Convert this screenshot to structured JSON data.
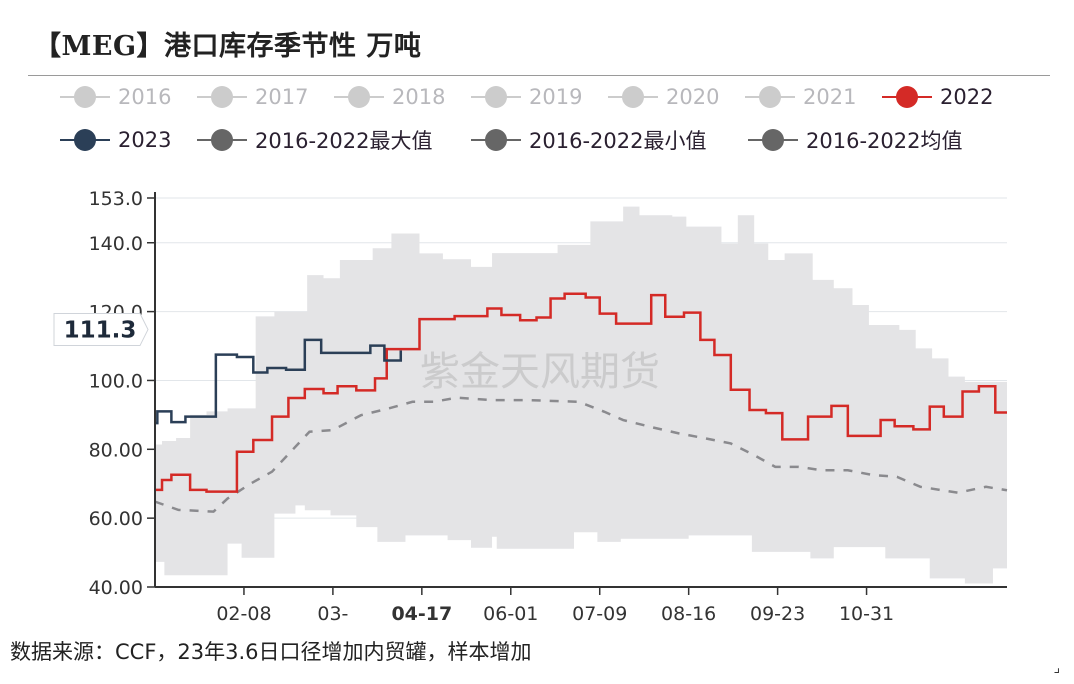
{
  "title": "【MEG】港口库存季节性 万吨",
  "footer": "数据来源：CCF，23年3.6日口径增加内贸罐，样本增加",
  "watermark": "紫金天风期货",
  "legend": [
    {
      "label": "2016",
      "color": "#cccccc",
      "inactive": true
    },
    {
      "label": "2017",
      "color": "#cccccc",
      "inactive": true
    },
    {
      "label": "2018",
      "color": "#cccccc",
      "inactive": true
    },
    {
      "label": "2019",
      "color": "#cccccc",
      "inactive": true
    },
    {
      "label": "2020",
      "color": "#cccccc",
      "inactive": true
    },
    {
      "label": "2021",
      "color": "#cccccc",
      "inactive": true
    },
    {
      "label": "2022",
      "color": "#d42a26",
      "inactive": false
    },
    {
      "label": "2023",
      "color": "#2b3f57",
      "inactive": false
    },
    {
      "label": "2016-2022最大值",
      "color": "#666666",
      "inactive": false
    },
    {
      "label": "2016-2022最小值",
      "color": "#666666",
      "inactive": false
    },
    {
      "label": "2016-2022均值",
      "color": "#666666",
      "inactive": false
    }
  ],
  "chart_data": {
    "type": "line",
    "title": "【MEG】港口库存季节性 万吨",
    "ylim": [
      40,
      153
    ],
    "y_ticks": [
      "40.00",
      "60.00",
      "80.00",
      "100.0",
      "120.0",
      "140.0",
      "153.0"
    ],
    "y_tick_values": [
      40,
      60,
      80,
      100,
      120,
      140,
      153
    ],
    "x_tick_labels": [
      "02-08",
      "03-",
      "04-17",
      "06-01",
      "07-09",
      "08-16",
      "09-23",
      "10-31"
    ],
    "axis_pointer": {
      "x_label": "04-17",
      "y_label": "111.3"
    },
    "grid": true,
    "legend_position": "top",
    "series": [
      {
        "name": "2022",
        "color": "#d42a26",
        "step": true,
        "points": [
          [
            "01-01",
            68.2
          ],
          [
            "01-04",
            71.1
          ],
          [
            "01-08",
            72.6
          ],
          [
            "01-16",
            68.2
          ],
          [
            "01-23",
            67.7
          ],
          [
            "02-05",
            79.3
          ],
          [
            "02-12",
            82.7
          ],
          [
            "02-20",
            89.5
          ],
          [
            "02-27",
            94.9
          ],
          [
            "03-06",
            97.5
          ],
          [
            "03-14",
            96.3
          ],
          [
            "03-20",
            98.3
          ],
          [
            "03-28",
            97.1
          ],
          [
            "04-05",
            100.6
          ],
          [
            "04-10",
            109.1
          ],
          [
            "04-24",
            117.8
          ],
          [
            "05-09",
            118.7
          ],
          [
            "05-23",
            120.9
          ],
          [
            "05-29",
            119.0
          ],
          [
            "06-06",
            117.5
          ],
          [
            "06-13",
            118.3
          ],
          [
            "06-19",
            123.8
          ],
          [
            "06-25",
            125.2
          ],
          [
            "07-04",
            124.1
          ],
          [
            "07-10",
            119.4
          ],
          [
            "07-17",
            116.5
          ],
          [
            "08-01",
            124.8
          ],
          [
            "08-07",
            118.5
          ],
          [
            "08-15",
            119.7
          ],
          [
            "08-22",
            111.8
          ],
          [
            "08-28",
            107.4
          ],
          [
            "09-04",
            97.3
          ],
          [
            "09-12",
            91.4
          ],
          [
            "09-19",
            90.5
          ],
          [
            "09-26",
            82.9
          ],
          [
            "10-07",
            89.5
          ],
          [
            "10-17",
            92.6
          ],
          [
            "10-24",
            83.9
          ],
          [
            "11-07",
            88.5
          ],
          [
            "11-13",
            86.7
          ],
          [
            "11-21",
            85.8
          ],
          [
            "11-28",
            92.4
          ],
          [
            "12-04",
            89.5
          ],
          [
            "12-12",
            96.8
          ],
          [
            "12-19",
            98.3
          ],
          [
            "12-26",
            90.7
          ],
          [
            "12-31",
            90.7
          ]
        ]
      },
      {
        "name": "2023",
        "color": "#2b3f57",
        "step": true,
        "points": [
          [
            "01-01",
            87.6
          ],
          [
            "01-02",
            91.0
          ],
          [
            "01-08",
            87.9
          ],
          [
            "01-14",
            89.5
          ],
          [
            "01-27",
            107.5
          ],
          [
            "02-05",
            106.8
          ],
          [
            "02-12",
            102.3
          ],
          [
            "02-18",
            103.6
          ],
          [
            "02-26",
            103.1
          ],
          [
            "03-06",
            111.8
          ],
          [
            "03-13",
            108.0
          ],
          [
            "04-03",
            110.1
          ],
          [
            "04-09",
            105.8
          ],
          [
            "04-16",
            108.7
          ]
        ]
      },
      {
        "name": "2016-2022最大值",
        "color": "#e4e4e6",
        "step": true,
        "points": [
          [
            "01-01",
            81.4
          ],
          [
            "01-04",
            82.4
          ],
          [
            "01-10",
            83.3
          ],
          [
            "01-16",
            90.0
          ],
          [
            "01-23",
            91.0
          ],
          [
            "02-01",
            91.9
          ],
          [
            "02-13",
            118.6
          ],
          [
            "02-21",
            120.0
          ],
          [
            "03-07",
            130.6
          ],
          [
            "03-14",
            129.7
          ],
          [
            "03-21",
            135.0
          ],
          [
            "04-04",
            138.4
          ],
          [
            "04-12",
            142.7
          ],
          [
            "04-24",
            136.9
          ],
          [
            "05-04",
            135.2
          ],
          [
            "05-16",
            133.0
          ],
          [
            "05-25",
            137.0
          ],
          [
            "06-22",
            139.4
          ],
          [
            "07-06",
            146.2
          ],
          [
            "07-20",
            150.5
          ],
          [
            "07-27",
            148.0
          ],
          [
            "08-10",
            147.6
          ],
          [
            "08-16",
            144.7
          ],
          [
            "08-31",
            139.8
          ],
          [
            "09-07",
            148.0
          ],
          [
            "09-14",
            139.8
          ],
          [
            "09-20",
            135.0
          ],
          [
            "09-27",
            136.9
          ],
          [
            "10-09",
            129.2
          ],
          [
            "10-18",
            126.8
          ],
          [
            "10-26",
            121.9
          ],
          [
            "11-02",
            116.1
          ],
          [
            "11-15",
            114.7
          ],
          [
            "11-22",
            109.3
          ],
          [
            "11-29",
            106.4
          ],
          [
            "12-06",
            101.1
          ],
          [
            "12-13",
            99.6
          ],
          [
            "12-31",
            99.6
          ]
        ]
      },
      {
        "name": "2016-2022最小值",
        "color": "#e4e4e6",
        "step": true,
        "points": [
          [
            "01-01",
            47.3
          ],
          [
            "01-05",
            43.4
          ],
          [
            "02-01",
            52.6
          ],
          [
            "02-07",
            48.5
          ],
          [
            "02-21",
            61.3
          ],
          [
            "03-02",
            63.7
          ],
          [
            "03-06",
            62.3
          ],
          [
            "03-17",
            60.8
          ],
          [
            "03-28",
            57.4
          ],
          [
            "04-06",
            53.1
          ],
          [
            "04-18",
            55.0
          ],
          [
            "05-06",
            53.6
          ],
          [
            "05-16",
            51.4
          ],
          [
            "05-25",
            54.6
          ],
          [
            "05-27",
            51.1
          ],
          [
            "06-29",
            55.9
          ],
          [
            "07-09",
            53.1
          ],
          [
            "07-19",
            54.0
          ],
          [
            "08-17",
            55.0
          ],
          [
            "09-13",
            50.2
          ],
          [
            "10-08",
            48.3
          ],
          [
            "10-18",
            51.6
          ],
          [
            "11-09",
            48.3
          ],
          [
            "11-28",
            42.5
          ],
          [
            "12-13",
            41.0
          ],
          [
            "12-25",
            45.4
          ],
          [
            "12-31",
            45.4
          ]
        ]
      },
      {
        "name": "2016-2022均值",
        "color": "#8a8a8e",
        "dashed": true,
        "points": [
          [
            "01-01",
            64.8
          ],
          [
            "01-11",
            62.4
          ],
          [
            "01-26",
            61.9
          ],
          [
            "02-01",
            65.7
          ],
          [
            "02-11",
            70.1
          ],
          [
            "02-20",
            73.5
          ],
          [
            "02-28",
            79.3
          ],
          [
            "03-08",
            85.1
          ],
          [
            "03-18",
            85.6
          ],
          [
            "03-30",
            89.9
          ],
          [
            "04-11",
            91.9
          ],
          [
            "04-21",
            93.8
          ],
          [
            "04-30",
            93.8
          ],
          [
            "05-10",
            95.0
          ],
          [
            "05-25",
            94.3
          ],
          [
            "06-09",
            94.3
          ],
          [
            "07-01",
            93.8
          ],
          [
            "07-12",
            90.9
          ],
          [
            "07-20",
            88.5
          ],
          [
            "08-02",
            86.3
          ],
          [
            "08-13",
            84.6
          ],
          [
            "08-24",
            83.2
          ],
          [
            "09-04",
            81.7
          ],
          [
            "09-14",
            78.3
          ],
          [
            "09-23",
            74.9
          ],
          [
            "10-03",
            74.9
          ],
          [
            "10-13",
            73.9
          ],
          [
            "10-24",
            73.9
          ],
          [
            "11-04",
            72.5
          ],
          [
            "11-14",
            72.0
          ],
          [
            "11-24",
            69.1
          ],
          [
            "12-10",
            67.4
          ],
          [
            "12-22",
            69.1
          ],
          [
            "12-31",
            68.1
          ]
        ]
      }
    ]
  }
}
